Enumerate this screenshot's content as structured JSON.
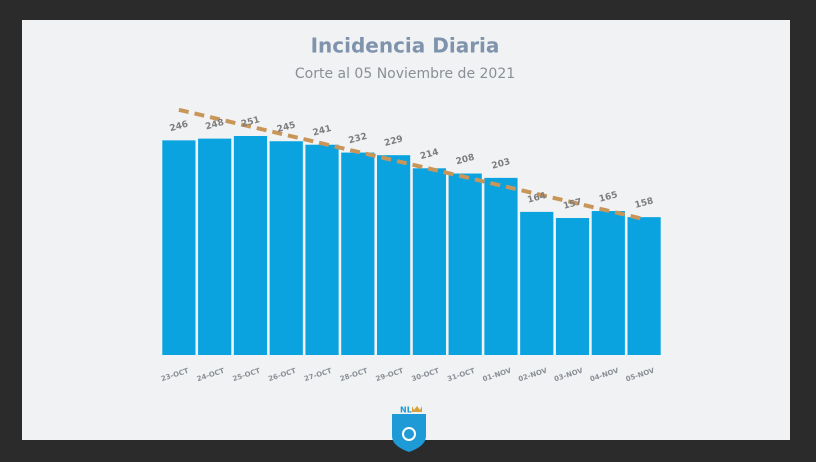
{
  "chart_data": {
    "type": "bar",
    "title": "Incidencia Diaria",
    "subtitle": "Corte al 05 Noviembre de 2021",
    "categories": [
      "23-OCT",
      "24-OCT",
      "25-OCT",
      "26-OCT",
      "27-OCT",
      "28-OCT",
      "29-OCT",
      "30-OCT",
      "31-OCT",
      "01-NOV",
      "02-NOV",
      "03-NOV",
      "04-NOV",
      "05-NOV"
    ],
    "values": [
      246,
      248,
      251,
      245,
      241,
      232,
      229,
      214,
      208,
      203,
      164,
      157,
      165,
      158
    ],
    "color": "#0aa3e0",
    "trendline": true,
    "trendline_color": "#c9965a",
    "ylim": [
      0,
      251
    ]
  },
  "logo": {
    "text": "NL"
  }
}
